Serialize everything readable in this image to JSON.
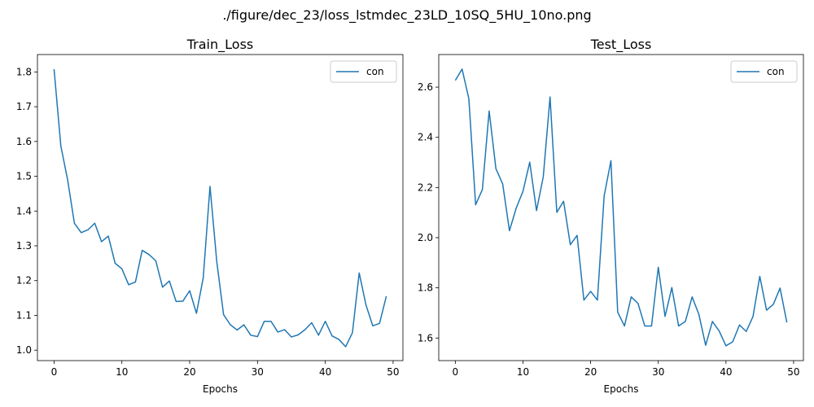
{
  "figure": {
    "suptitle": "./figure/dec_23/loss_lstmdec_23LD_10SQ_5HU_10no.png"
  },
  "chart_data": [
    {
      "type": "line",
      "title": "Train_Loss",
      "xlabel": "Epochs",
      "ylabel": "",
      "xlim": [
        -2.45,
        51.45
      ],
      "ylim": [
        0.97,
        1.85
      ],
      "xticks": [
        0,
        10,
        20,
        30,
        40,
        50
      ],
      "xtick_labels": [
        "0",
        "10",
        "20",
        "30",
        "40",
        "50"
      ],
      "yticks": [
        1.0,
        1.1,
        1.2,
        1.3,
        1.4,
        1.5,
        1.6,
        1.7,
        1.8
      ],
      "ytick_labels": [
        "1.0",
        "1.1",
        "1.2",
        "1.3",
        "1.4",
        "1.5",
        "1.6",
        "1.7",
        "1.8"
      ],
      "grid": false,
      "legend": {
        "placement": "top-right",
        "entries": [
          "con"
        ]
      },
      "series": [
        {
          "name": "con",
          "color": "#1f77b4",
          "x": [
            0,
            1,
            2,
            3,
            4,
            5,
            6,
            7,
            8,
            9,
            10,
            11,
            12,
            13,
            14,
            15,
            16,
            17,
            18,
            19,
            20,
            21,
            22,
            23,
            24,
            25,
            26,
            27,
            28,
            29,
            30,
            31,
            32,
            33,
            34,
            35,
            36,
            37,
            38,
            39,
            40,
            41,
            42,
            43,
            44,
            45,
            46,
            47,
            48,
            49
          ],
          "y": [
            1.808,
            1.587,
            1.49,
            1.365,
            1.338,
            1.346,
            1.365,
            1.312,
            1.328,
            1.25,
            1.234,
            1.188,
            1.196,
            1.287,
            1.275,
            1.257,
            1.181,
            1.199,
            1.14,
            1.141,
            1.171,
            1.106,
            1.208,
            1.471,
            1.254,
            1.102,
            1.073,
            1.058,
            1.073,
            1.043,
            1.039,
            1.083,
            1.083,
            1.052,
            1.059,
            1.038,
            1.044,
            1.059,
            1.079,
            1.043,
            1.083,
            1.041,
            1.031,
            1.01,
            1.05,
            1.222,
            1.13,
            1.07,
            1.077,
            1.155
          ]
        }
      ]
    },
    {
      "type": "line",
      "title": "Test_Loss",
      "xlabel": "Epochs",
      "ylabel": "",
      "xlim": [
        -2.45,
        51.45
      ],
      "ylim": [
        1.51,
        2.73
      ],
      "xticks": [
        0,
        10,
        20,
        30,
        40,
        50
      ],
      "xtick_labels": [
        "0",
        "10",
        "20",
        "30",
        "40",
        "50"
      ],
      "yticks": [
        1.6,
        1.8,
        2.0,
        2.2,
        2.4,
        2.6
      ],
      "ytick_labels": [
        "1.6",
        "1.8",
        "2.0",
        "2.2",
        "2.4",
        "2.6"
      ],
      "grid": false,
      "legend": {
        "placement": "top-right",
        "entries": [
          "con"
        ]
      },
      "series": [
        {
          "name": "con",
          "color": "#1f77b4",
          "x": [
            0,
            1,
            2,
            3,
            4,
            5,
            6,
            7,
            8,
            9,
            10,
            11,
            12,
            13,
            14,
            15,
            16,
            17,
            18,
            19,
            20,
            21,
            22,
            23,
            24,
            25,
            26,
            27,
            28,
            29,
            30,
            31,
            32,
            33,
            34,
            35,
            36,
            37,
            38,
            39,
            40,
            41,
            42,
            43,
            44,
            45,
            46,
            47,
            48,
            49
          ],
          "y": [
            2.627,
            2.672,
            2.554,
            2.131,
            2.192,
            2.505,
            2.275,
            2.214,
            2.028,
            2.118,
            2.185,
            2.301,
            2.108,
            2.243,
            2.561,
            2.101,
            2.145,
            1.972,
            2.009,
            1.751,
            1.786,
            1.751,
            2.167,
            2.307,
            1.703,
            1.648,
            1.764,
            1.738,
            1.648,
            1.648,
            1.882,
            1.686,
            1.801,
            1.648,
            1.666,
            1.764,
            1.694,
            1.571,
            1.666,
            1.628,
            1.569,
            1.585,
            1.652,
            1.626,
            1.686,
            1.846,
            1.711,
            1.734,
            1.799,
            1.662
          ]
        }
      ]
    }
  ]
}
